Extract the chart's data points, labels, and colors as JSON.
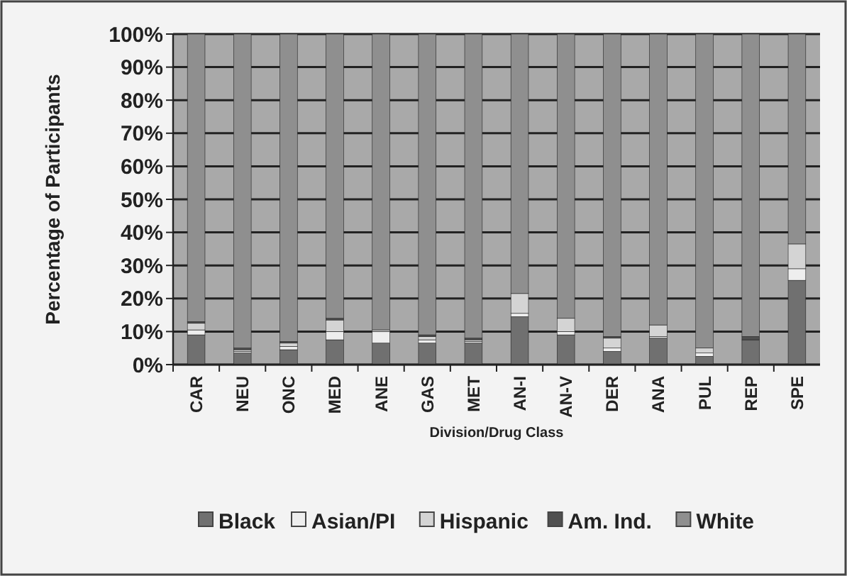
{
  "chart_data": {
    "type": "bar",
    "stacked": true,
    "xlabel": "Division/Drug Class",
    "ylabel": "Percentage of Participants",
    "categories": [
      "CAR",
      "NEU",
      "ONC",
      "MED",
      "ANE",
      "GAS",
      "MET",
      "AN-I",
      "AN-V",
      "DER",
      "ANA",
      "PUL",
      "REP",
      "SPE"
    ],
    "series": [
      {
        "name": "Black",
        "color": "#707070",
        "values": [
          9,
          3.5,
          4.5,
          7.5,
          6.5,
          6.5,
          6.5,
          14.5,
          9,
          4,
          8,
          2.5,
          7.5,
          25.5
        ]
      },
      {
        "name": "Asian/PI",
        "color": "#eeeeee",
        "values": [
          1.5,
          0.5,
          1,
          2.5,
          3.5,
          1,
          0.5,
          1,
          1,
          1,
          0.5,
          1,
          0,
          3.5
        ]
      },
      {
        "name": "Hispanic",
        "color": "#d4d4d4",
        "values": [
          2,
          0.5,
          1,
          3.5,
          0.5,
          1,
          0.5,
          6,
          4,
          3,
          3.5,
          1.5,
          0,
          7.5
        ]
      },
      {
        "name": "Am. Ind.",
        "color": "#505050",
        "values": [
          0.5,
          0.5,
          0.5,
          0.5,
          0,
          0.5,
          0.5,
          0,
          0,
          0.5,
          0,
          0,
          1,
          0
        ]
      },
      {
        "name": "White",
        "color": "#8f8f8f",
        "values": [
          87,
          95,
          93,
          86,
          89.5,
          91,
          92,
          78.5,
          86,
          91.5,
          88,
          95,
          91.5,
          63.5
        ]
      }
    ],
    "ylim": [
      0,
      100
    ],
    "yticks": [
      {
        "value": 0,
        "label": "0%"
      },
      {
        "value": 10,
        "label": "10%"
      },
      {
        "value": 20,
        "label": "20%"
      },
      {
        "value": 30,
        "label": "30%"
      },
      {
        "value": 40,
        "label": "40%"
      },
      {
        "value": 50,
        "label": "50%"
      },
      {
        "value": 60,
        "label": "60%"
      },
      {
        "value": 70,
        "label": "70%"
      },
      {
        "value": 80,
        "label": "80%"
      },
      {
        "value": 90,
        "label": "90%"
      },
      {
        "value": 100,
        "label": "100%"
      }
    ],
    "grid": "y",
    "legend": "bottom"
  }
}
